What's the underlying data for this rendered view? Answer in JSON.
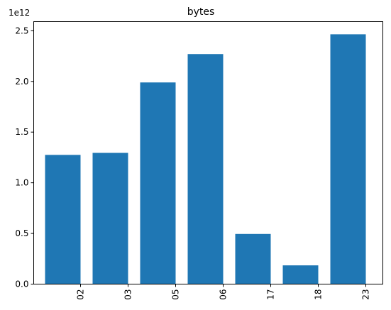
{
  "chart_data": {
    "type": "bar",
    "title": "bytes",
    "xlabel": "",
    "ylabel": "",
    "categories": [
      "02",
      "03",
      "05",
      "06",
      "17",
      "18",
      "23"
    ],
    "values": [
      1.275,
      1.295,
      1.99,
      2.27,
      0.495,
      0.185,
      2.465
    ],
    "y_ticks": [
      0.0,
      0.5,
      1.0,
      1.5,
      2.0,
      2.5
    ],
    "y_tick_labels": [
      "0.0",
      "0.5",
      "1.0",
      "1.5",
      "2.0",
      "2.5"
    ],
    "ylim": [
      0,
      2.59
    ],
    "offset_label": "1e12",
    "x_tick_rotation": "vertical",
    "grid": false,
    "bar_color": "#1f77b4"
  }
}
